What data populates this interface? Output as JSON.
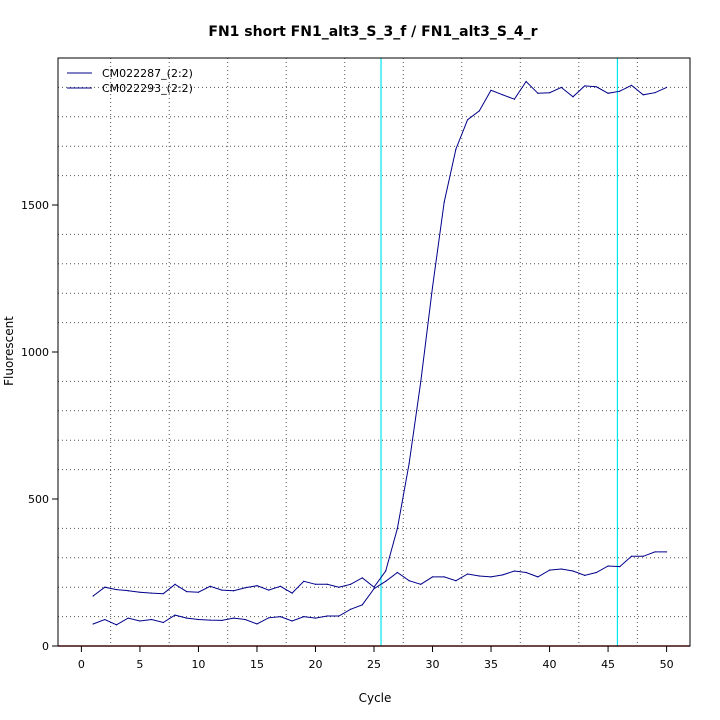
{
  "chart_data": {
    "type": "line",
    "title": "FN1 short FN1_alt3_S_3_f / FN1_alt3_S_4_r",
    "xlabel": "Cycle",
    "ylabel": "Fluorescent",
    "xlim": [
      -2,
      52
    ],
    "ylim": [
      0,
      2000
    ],
    "x_ticks": [
      0,
      5,
      10,
      15,
      20,
      25,
      30,
      35,
      40,
      45,
      50
    ],
    "y_ticks": [
      0,
      500,
      1000,
      1500
    ],
    "grid": true,
    "legend_position": "top-left",
    "colors": {
      "series": "#00008b",
      "threshold_lines": "#00e5ee",
      "baseline": "#b22222",
      "grid": "#555555"
    },
    "threshold_x": [
      25.6,
      45.8
    ],
    "x": [
      1,
      2,
      3,
      4,
      5,
      6,
      7,
      8,
      9,
      10,
      11,
      12,
      13,
      14,
      15,
      16,
      17,
      18,
      19,
      20,
      21,
      22,
      23,
      24,
      25,
      26,
      27,
      28,
      29,
      30,
      31,
      32,
      33,
      34,
      35,
      36,
      37,
      38,
      39,
      40,
      41,
      42,
      43,
      44,
      45,
      46,
      47,
      48,
      49,
      50
    ],
    "series": [
      {
        "name": "CM022287_(2:2)",
        "values": [
          170,
          200,
          192,
          188,
          183,
          180,
          178,
          210,
          185,
          183,
          203,
          190,
          188,
          198,
          205,
          190,
          203,
          180,
          220,
          210,
          210,
          200,
          210,
          232,
          200,
          255,
          400,
          620,
          900,
          1220,
          1510,
          1690,
          1790,
          1820,
          1890,
          1875,
          1860,
          1920,
          1880,
          1882,
          1900,
          1868,
          1905,
          1902,
          1880,
          1887,
          1907,
          1875,
          1882,
          1900
        ]
      },
      {
        "name": "CM022293_(2:2)",
        "values": [
          75,
          90,
          72,
          95,
          85,
          90,
          80,
          105,
          95,
          90,
          88,
          87,
          95,
          90,
          75,
          96,
          100,
          85,
          100,
          95,
          102,
          102,
          125,
          140,
          195,
          220,
          250,
          222,
          210,
          235,
          235,
          222,
          245,
          238,
          235,
          242,
          255,
          250,
          235,
          258,
          262,
          255,
          240,
          250,
          272,
          270,
          305,
          305,
          320,
          320
        ]
      }
    ]
  }
}
